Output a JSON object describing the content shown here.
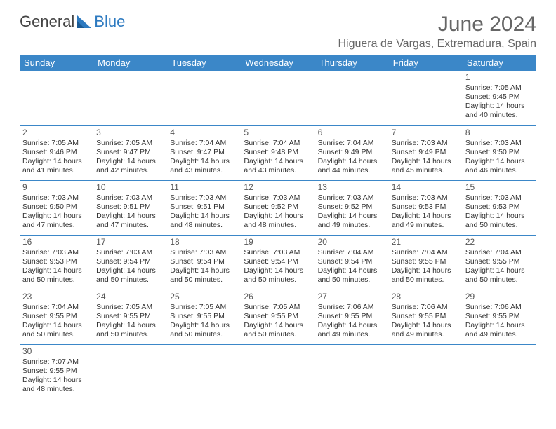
{
  "brand": {
    "part1": "General",
    "part2": "Blue"
  },
  "title": "June 2024",
  "location": "Higuera de Vargas, Extremadura, Spain",
  "colors": {
    "header_bg": "#3b87c8",
    "header_fg": "#ffffff",
    "rule": "#3b87c8",
    "text": "#333333",
    "title": "#666666"
  },
  "days_of_week": [
    "Sunday",
    "Monday",
    "Tuesday",
    "Wednesday",
    "Thursday",
    "Friday",
    "Saturday"
  ],
  "weeks": [
    [
      null,
      null,
      null,
      null,
      null,
      null,
      {
        "n": "1",
        "sr": "Sunrise: 7:05 AM",
        "ss": "Sunset: 9:45 PM",
        "d1": "Daylight: 14 hours",
        "d2": "and 40 minutes."
      }
    ],
    [
      {
        "n": "2",
        "sr": "Sunrise: 7:05 AM",
        "ss": "Sunset: 9:46 PM",
        "d1": "Daylight: 14 hours",
        "d2": "and 41 minutes."
      },
      {
        "n": "3",
        "sr": "Sunrise: 7:05 AM",
        "ss": "Sunset: 9:47 PM",
        "d1": "Daylight: 14 hours",
        "d2": "and 42 minutes."
      },
      {
        "n": "4",
        "sr": "Sunrise: 7:04 AM",
        "ss": "Sunset: 9:47 PM",
        "d1": "Daylight: 14 hours",
        "d2": "and 43 minutes."
      },
      {
        "n": "5",
        "sr": "Sunrise: 7:04 AM",
        "ss": "Sunset: 9:48 PM",
        "d1": "Daylight: 14 hours",
        "d2": "and 43 minutes."
      },
      {
        "n": "6",
        "sr": "Sunrise: 7:04 AM",
        "ss": "Sunset: 9:49 PM",
        "d1": "Daylight: 14 hours",
        "d2": "and 44 minutes."
      },
      {
        "n": "7",
        "sr": "Sunrise: 7:03 AM",
        "ss": "Sunset: 9:49 PM",
        "d1": "Daylight: 14 hours",
        "d2": "and 45 minutes."
      },
      {
        "n": "8",
        "sr": "Sunrise: 7:03 AM",
        "ss": "Sunset: 9:50 PM",
        "d1": "Daylight: 14 hours",
        "d2": "and 46 minutes."
      }
    ],
    [
      {
        "n": "9",
        "sr": "Sunrise: 7:03 AM",
        "ss": "Sunset: 9:50 PM",
        "d1": "Daylight: 14 hours",
        "d2": "and 47 minutes."
      },
      {
        "n": "10",
        "sr": "Sunrise: 7:03 AM",
        "ss": "Sunset: 9:51 PM",
        "d1": "Daylight: 14 hours",
        "d2": "and 47 minutes."
      },
      {
        "n": "11",
        "sr": "Sunrise: 7:03 AM",
        "ss": "Sunset: 9:51 PM",
        "d1": "Daylight: 14 hours",
        "d2": "and 48 minutes."
      },
      {
        "n": "12",
        "sr": "Sunrise: 7:03 AM",
        "ss": "Sunset: 9:52 PM",
        "d1": "Daylight: 14 hours",
        "d2": "and 48 minutes."
      },
      {
        "n": "13",
        "sr": "Sunrise: 7:03 AM",
        "ss": "Sunset: 9:52 PM",
        "d1": "Daylight: 14 hours",
        "d2": "and 49 minutes."
      },
      {
        "n": "14",
        "sr": "Sunrise: 7:03 AM",
        "ss": "Sunset: 9:53 PM",
        "d1": "Daylight: 14 hours",
        "d2": "and 49 minutes."
      },
      {
        "n": "15",
        "sr": "Sunrise: 7:03 AM",
        "ss": "Sunset: 9:53 PM",
        "d1": "Daylight: 14 hours",
        "d2": "and 50 minutes."
      }
    ],
    [
      {
        "n": "16",
        "sr": "Sunrise: 7:03 AM",
        "ss": "Sunset: 9:53 PM",
        "d1": "Daylight: 14 hours",
        "d2": "and 50 minutes."
      },
      {
        "n": "17",
        "sr": "Sunrise: 7:03 AM",
        "ss": "Sunset: 9:54 PM",
        "d1": "Daylight: 14 hours",
        "d2": "and 50 minutes."
      },
      {
        "n": "18",
        "sr": "Sunrise: 7:03 AM",
        "ss": "Sunset: 9:54 PM",
        "d1": "Daylight: 14 hours",
        "d2": "and 50 minutes."
      },
      {
        "n": "19",
        "sr": "Sunrise: 7:03 AM",
        "ss": "Sunset: 9:54 PM",
        "d1": "Daylight: 14 hours",
        "d2": "and 50 minutes."
      },
      {
        "n": "20",
        "sr": "Sunrise: 7:04 AM",
        "ss": "Sunset: 9:54 PM",
        "d1": "Daylight: 14 hours",
        "d2": "and 50 minutes."
      },
      {
        "n": "21",
        "sr": "Sunrise: 7:04 AM",
        "ss": "Sunset: 9:55 PM",
        "d1": "Daylight: 14 hours",
        "d2": "and 50 minutes."
      },
      {
        "n": "22",
        "sr": "Sunrise: 7:04 AM",
        "ss": "Sunset: 9:55 PM",
        "d1": "Daylight: 14 hours",
        "d2": "and 50 minutes."
      }
    ],
    [
      {
        "n": "23",
        "sr": "Sunrise: 7:04 AM",
        "ss": "Sunset: 9:55 PM",
        "d1": "Daylight: 14 hours",
        "d2": "and 50 minutes."
      },
      {
        "n": "24",
        "sr": "Sunrise: 7:05 AM",
        "ss": "Sunset: 9:55 PM",
        "d1": "Daylight: 14 hours",
        "d2": "and 50 minutes."
      },
      {
        "n": "25",
        "sr": "Sunrise: 7:05 AM",
        "ss": "Sunset: 9:55 PM",
        "d1": "Daylight: 14 hours",
        "d2": "and 50 minutes."
      },
      {
        "n": "26",
        "sr": "Sunrise: 7:05 AM",
        "ss": "Sunset: 9:55 PM",
        "d1": "Daylight: 14 hours",
        "d2": "and 50 minutes."
      },
      {
        "n": "27",
        "sr": "Sunrise: 7:06 AM",
        "ss": "Sunset: 9:55 PM",
        "d1": "Daylight: 14 hours",
        "d2": "and 49 minutes."
      },
      {
        "n": "28",
        "sr": "Sunrise: 7:06 AM",
        "ss": "Sunset: 9:55 PM",
        "d1": "Daylight: 14 hours",
        "d2": "and 49 minutes."
      },
      {
        "n": "29",
        "sr": "Sunrise: 7:06 AM",
        "ss": "Sunset: 9:55 PM",
        "d1": "Daylight: 14 hours",
        "d2": "and 49 minutes."
      }
    ],
    [
      {
        "n": "30",
        "sr": "Sunrise: 7:07 AM",
        "ss": "Sunset: 9:55 PM",
        "d1": "Daylight: 14 hours",
        "d2": "and 48 minutes."
      },
      null,
      null,
      null,
      null,
      null,
      null
    ]
  ]
}
